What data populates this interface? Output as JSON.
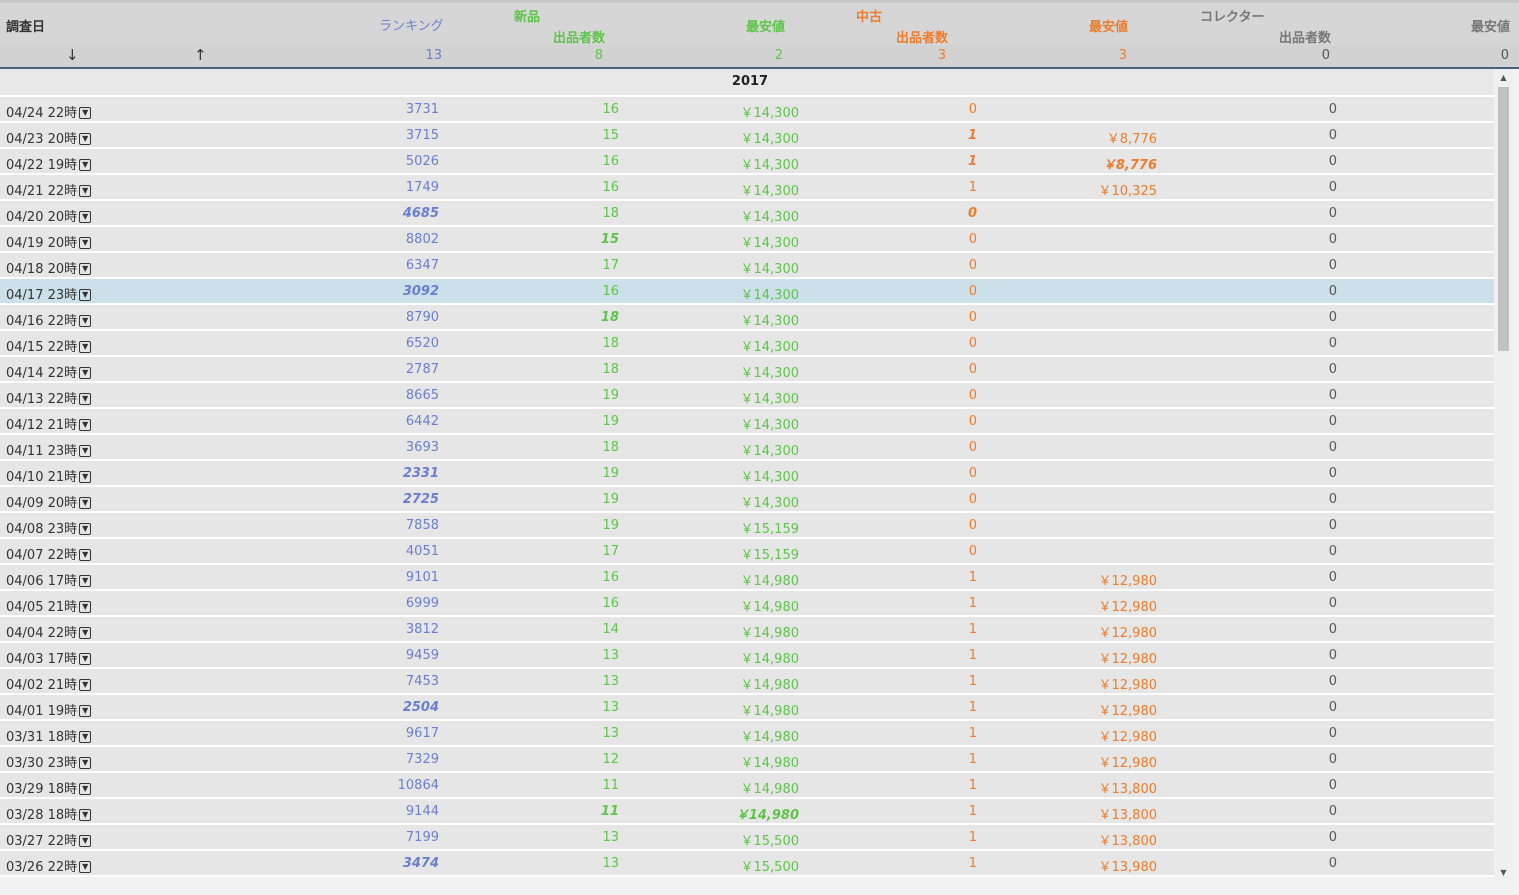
{
  "header": {
    "date_label": "調査日",
    "ranking_label": "ランキング",
    "new_group": "新品",
    "new_count_label": "出品者数",
    "new_price_label": "最安値",
    "used_group": "中古",
    "used_count_label": "出品者数",
    "used_price_label": "最安値",
    "collector_group": "コレクター",
    "collector_count_label": "出品者数",
    "collector_price_label": "最安値"
  },
  "summary": {
    "sort_desc": "↓",
    "sort_asc": "↑",
    "ranking": "13",
    "new_count": "8",
    "new_price": "2",
    "used_count": "3",
    "used_price": "3",
    "collector_count": "0",
    "collector_price": "0"
  },
  "year": "2017",
  "rows": [
    {
      "date": "04/24 22時",
      "rank": "3731",
      "new_count": "16",
      "new_price": "￥14,300",
      "used_count": "0",
      "used_price": "",
      "col_count": "0"
    },
    {
      "date": "04/23 20時",
      "rank": "3715",
      "new_count": "15",
      "new_price": "￥14,300",
      "used_count": "1",
      "used_price": "￥8,776",
      "col_count": "0",
      "em": [
        "used_count"
      ]
    },
    {
      "date": "04/22 19時",
      "rank": "5026",
      "new_count": "16",
      "new_price": "￥14,300",
      "used_count": "1",
      "used_price": "￥8,776",
      "col_count": "0",
      "em": [
        "used_count",
        "used_price"
      ]
    },
    {
      "date": "04/21 22時",
      "rank": "1749",
      "new_count": "16",
      "new_price": "￥14,300",
      "used_count": "1",
      "used_price": "￥10,325",
      "col_count": "0"
    },
    {
      "date": "04/20 20時",
      "rank": "4685",
      "new_count": "18",
      "new_price": "￥14,300",
      "used_count": "0",
      "used_price": "",
      "col_count": "0",
      "em": [
        "rank",
        "used_count"
      ]
    },
    {
      "date": "04/19 20時",
      "rank": "8802",
      "new_count": "15",
      "new_price": "￥14,300",
      "used_count": "0",
      "used_price": "",
      "col_count": "0",
      "em": [
        "new_count"
      ]
    },
    {
      "date": "04/18 20時",
      "rank": "6347",
      "new_count": "17",
      "new_price": "￥14,300",
      "used_count": "0",
      "used_price": "",
      "col_count": "0"
    },
    {
      "date": "04/17 23時",
      "rank": "3092",
      "new_count": "16",
      "new_price": "￥14,300",
      "used_count": "0",
      "used_price": "",
      "col_count": "0",
      "em": [
        "rank"
      ],
      "selected": true
    },
    {
      "date": "04/16 22時",
      "rank": "8790",
      "new_count": "18",
      "new_price": "￥14,300",
      "used_count": "0",
      "used_price": "",
      "col_count": "0",
      "em": [
        "new_count"
      ]
    },
    {
      "date": "04/15 22時",
      "rank": "6520",
      "new_count": "18",
      "new_price": "￥14,300",
      "used_count": "0",
      "used_price": "",
      "col_count": "0"
    },
    {
      "date": "04/14 22時",
      "rank": "2787",
      "new_count": "18",
      "new_price": "￥14,300",
      "used_count": "0",
      "used_price": "",
      "col_count": "0"
    },
    {
      "date": "04/13 22時",
      "rank": "8665",
      "new_count": "19",
      "new_price": "￥14,300",
      "used_count": "0",
      "used_price": "",
      "col_count": "0"
    },
    {
      "date": "04/12 21時",
      "rank": "6442",
      "new_count": "19",
      "new_price": "￥14,300",
      "used_count": "0",
      "used_price": "",
      "col_count": "0"
    },
    {
      "date": "04/11 23時",
      "rank": "3693",
      "new_count": "18",
      "new_price": "￥14,300",
      "used_count": "0",
      "used_price": "",
      "col_count": "0"
    },
    {
      "date": "04/10 21時",
      "rank": "2331",
      "new_count": "19",
      "new_price": "￥14,300",
      "used_count": "0",
      "used_price": "",
      "col_count": "0",
      "em": [
        "rank"
      ]
    },
    {
      "date": "04/09 20時",
      "rank": "2725",
      "new_count": "19",
      "new_price": "￥14,300",
      "used_count": "0",
      "used_price": "",
      "col_count": "0",
      "em": [
        "rank"
      ]
    },
    {
      "date": "04/08 23時",
      "rank": "7858",
      "new_count": "19",
      "new_price": "￥15,159",
      "used_count": "0",
      "used_price": "",
      "col_count": "0"
    },
    {
      "date": "04/07 22時",
      "rank": "4051",
      "new_count": "17",
      "new_price": "￥15,159",
      "used_count": "0",
      "used_price": "",
      "col_count": "0"
    },
    {
      "date": "04/06 17時",
      "rank": "9101",
      "new_count": "16",
      "new_price": "￥14,980",
      "used_count": "1",
      "used_price": "￥12,980",
      "col_count": "0"
    },
    {
      "date": "04/05 21時",
      "rank": "6999",
      "new_count": "16",
      "new_price": "￥14,980",
      "used_count": "1",
      "used_price": "￥12,980",
      "col_count": "0"
    },
    {
      "date": "04/04 22時",
      "rank": "3812",
      "new_count": "14",
      "new_price": "￥14,980",
      "used_count": "1",
      "used_price": "￥12,980",
      "col_count": "0"
    },
    {
      "date": "04/03 17時",
      "rank": "9459",
      "new_count": "13",
      "new_price": "￥14,980",
      "used_count": "1",
      "used_price": "￥12,980",
      "col_count": "0"
    },
    {
      "date": "04/02 21時",
      "rank": "7453",
      "new_count": "13",
      "new_price": "￥14,980",
      "used_count": "1",
      "used_price": "￥12,980",
      "col_count": "0"
    },
    {
      "date": "04/01 19時",
      "rank": "2504",
      "new_count": "13",
      "new_price": "￥14,980",
      "used_count": "1",
      "used_price": "￥12,980",
      "col_count": "0",
      "em": [
        "rank"
      ]
    },
    {
      "date": "03/31 18時",
      "rank": "9617",
      "new_count": "13",
      "new_price": "￥14,980",
      "used_count": "1",
      "used_price": "￥12,980",
      "col_count": "0"
    },
    {
      "date": "03/30 23時",
      "rank": "7329",
      "new_count": "12",
      "new_price": "￥14,980",
      "used_count": "1",
      "used_price": "￥12,980",
      "col_count": "0"
    },
    {
      "date": "03/29 18時",
      "rank": "10864",
      "new_count": "11",
      "new_price": "￥14,980",
      "used_count": "1",
      "used_price": "￥13,800",
      "col_count": "0"
    },
    {
      "date": "03/28 18時",
      "rank": "9144",
      "new_count": "11",
      "new_price": "￥14,980",
      "used_count": "1",
      "used_price": "￥13,800",
      "col_count": "0",
      "em": [
        "new_count",
        "new_price"
      ]
    },
    {
      "date": "03/27 22時",
      "rank": "7199",
      "new_count": "13",
      "new_price": "￥15,500",
      "used_count": "1",
      "used_price": "￥13,800",
      "col_count": "0"
    },
    {
      "date": "03/26 22時",
      "rank": "3474",
      "new_count": "13",
      "new_price": "￥15,500",
      "used_count": "1",
      "used_price": "￥13,980",
      "col_count": "0",
      "em": [
        "rank"
      ]
    }
  ],
  "colors": {
    "ranking": "#6a7fcf",
    "new": "#5ec44a",
    "used": "#ef7b2c",
    "collector": "#777777",
    "selected_row": "#cce0ea"
  }
}
